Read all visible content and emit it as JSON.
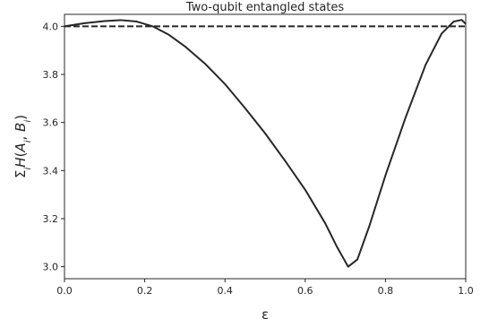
{
  "chart_data": {
    "type": "line",
    "title": "Two-qubit entangled states",
    "xlabel": "ε",
    "ylabel": "Σ_i H(A_i, B_i)",
    "xlim": [
      0.0,
      1.0
    ],
    "ylim": [
      2.95,
      4.05
    ],
    "xticks": [
      "0.0",
      "0.2",
      "0.4",
      "0.6",
      "0.8",
      "1.0"
    ],
    "yticks": [
      "3.0",
      "3.2",
      "3.4",
      "3.6",
      "3.8",
      "4.0"
    ],
    "grid": false,
    "legend": "none",
    "series": [
      {
        "style": "solid",
        "color": "#262626",
        "x": [
          0.0,
          0.05,
          0.1,
          0.14,
          0.18,
          0.22,
          0.26,
          0.3,
          0.35,
          0.4,
          0.45,
          0.5,
          0.55,
          0.6,
          0.65,
          0.68,
          0.707,
          0.73,
          0.76,
          0.8,
          0.85,
          0.9,
          0.94,
          0.97,
          0.99,
          1.0
        ],
        "y": [
          4.0,
          4.013,
          4.022,
          4.026,
          4.02,
          4.0,
          3.965,
          3.917,
          3.845,
          3.76,
          3.66,
          3.555,
          3.44,
          3.32,
          3.18,
          3.08,
          3.0,
          3.03,
          3.17,
          3.38,
          3.62,
          3.84,
          3.97,
          4.02,
          4.027,
          4.01
        ]
      },
      {
        "style": "dashed",
        "color": "#262626",
        "x": [
          0.0,
          1.0
        ],
        "y": [
          4.0,
          4.0
        ]
      }
    ]
  }
}
